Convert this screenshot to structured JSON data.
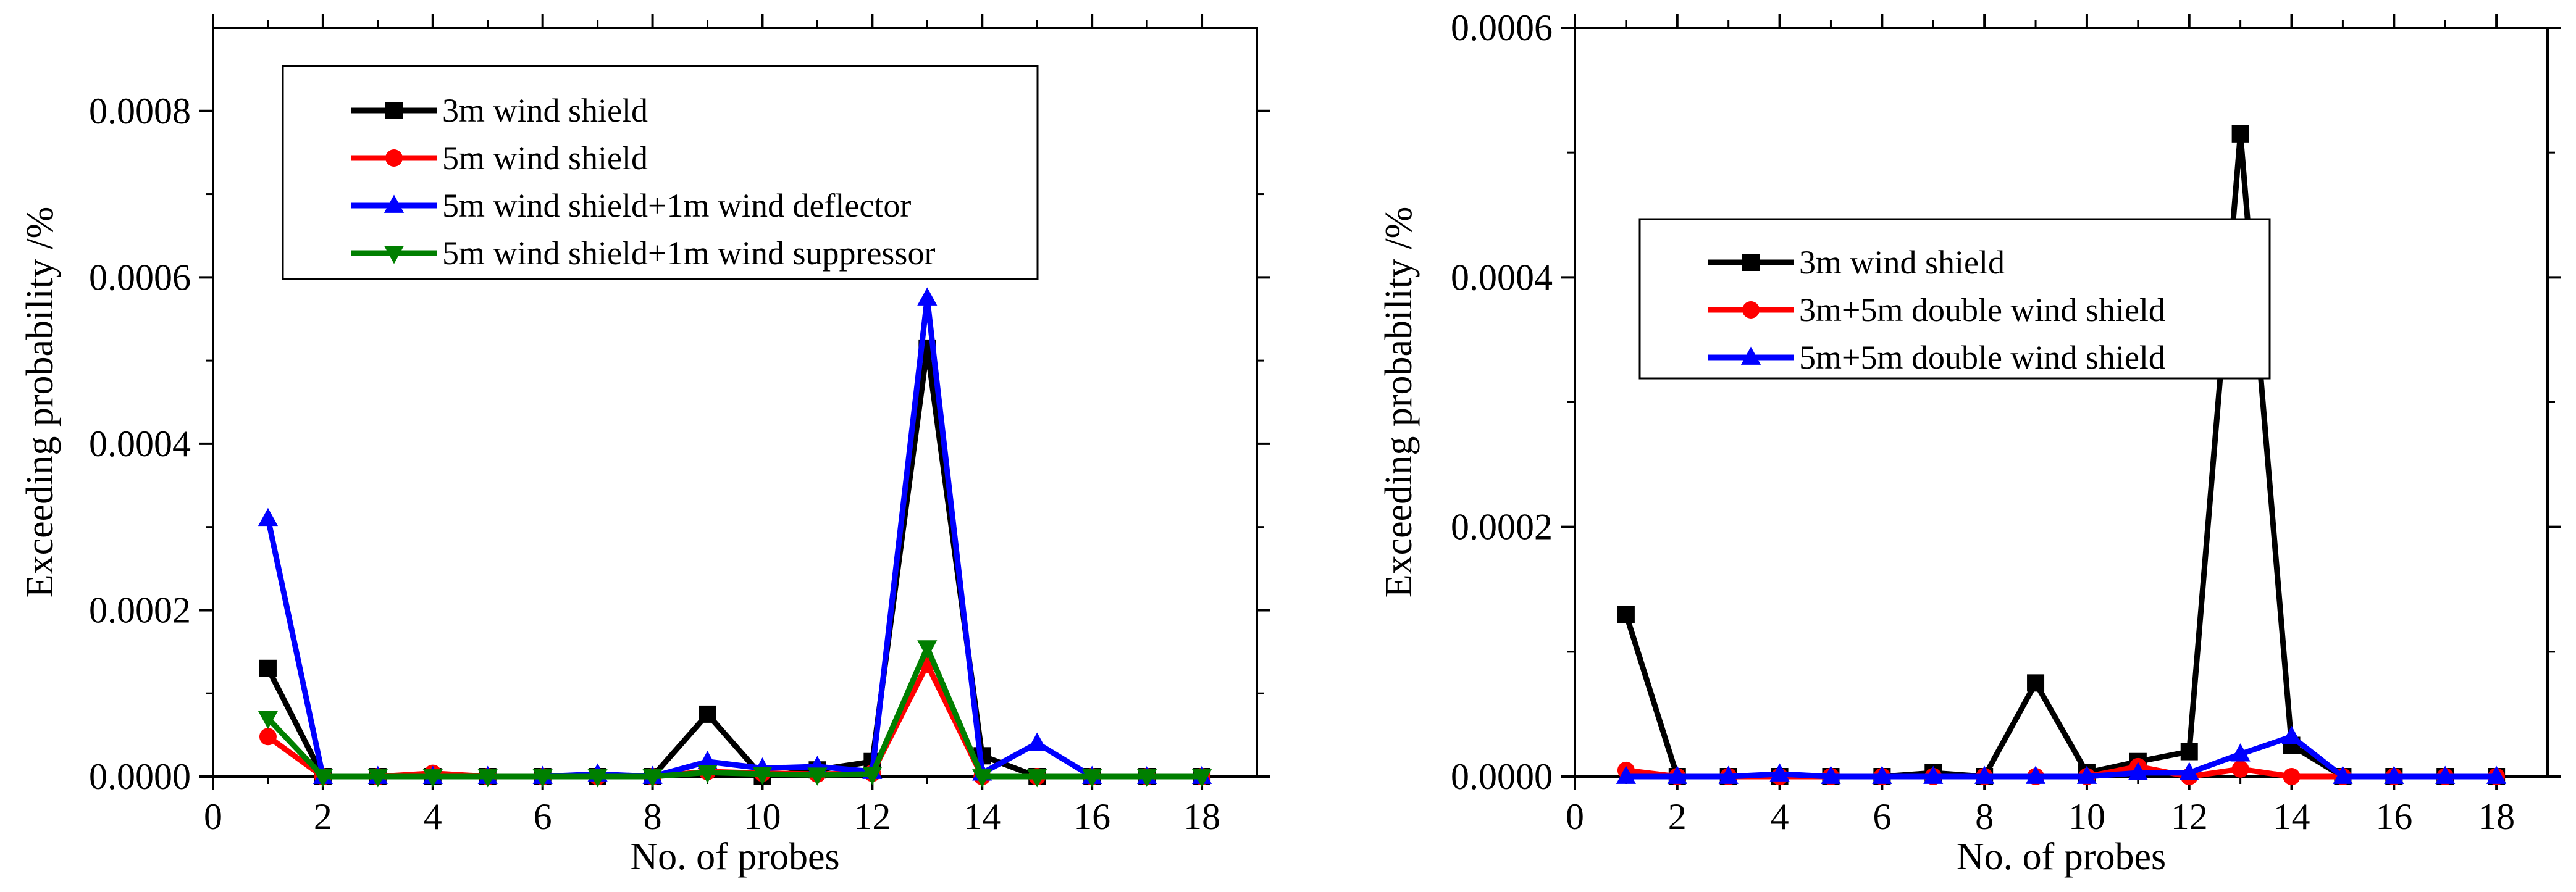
{
  "chart_data": [
    {
      "type": "line",
      "xlabel": "No. of probes",
      "ylabel": "Exceeding probability /%",
      "xlim": [
        0,
        19
      ],
      "ylim": [
        0,
        0.0009
      ],
      "xticks": [
        "0",
        "2",
        "4",
        "6",
        "8",
        "10",
        "12",
        "14",
        "16",
        "18"
      ],
      "yticks": [
        "0.0000",
        "0.0002",
        "0.0004",
        "0.0006",
        "0.0008"
      ],
      "legend_position": "top-left",
      "x": [
        1,
        2,
        3,
        4,
        5,
        6,
        7,
        8,
        9,
        10,
        11,
        12,
        13,
        14,
        15,
        16,
        17,
        18
      ],
      "series": [
        {
          "name": "3m wind shield",
          "color": "#000000",
          "marker": "square",
          "values": [
            0.00013,
            0.0,
            0.0,
            0.0,
            0.0,
            0.0,
            0.0,
            0.0,
            7.5e-05,
            0.0,
            8e-06,
            1.8e-05,
            0.000515,
            2.5e-05,
            0.0,
            0.0,
            0.0,
            0.0
          ]
        },
        {
          "name": "5m wind shield",
          "color": "#ff0000",
          "marker": "circle",
          "values": [
            4.8e-05,
            0.0,
            0.0,
            4e-06,
            0.0,
            0.0,
            0.0,
            0.0,
            6e-06,
            4e-06,
            3e-06,
            4e-06,
            0.000135,
            0.0,
            0.0,
            0.0,
            0.0,
            0.0
          ]
        },
        {
          "name": "5m wind shield+1m wind deflector",
          "color": "#0000ff",
          "marker": "triangle-up",
          "values": [
            0.00031,
            0.0,
            0.0,
            0.0,
            0.0,
            0.0,
            3e-06,
            0.0,
            1.8e-05,
            1e-05,
            1.2e-05,
            6e-06,
            0.000575,
            4e-06,
            4e-05,
            0.0,
            0.0,
            0.0
          ]
        },
        {
          "name": "5m wind shield+1m wind suppressor",
          "color": "#007f00",
          "marker": "triangle-down",
          "values": [
            7e-05,
            0.0,
            0.0,
            0.0,
            0.0,
            0.0,
            0.0,
            0.0,
            5e-06,
            3e-06,
            2e-06,
            3e-06,
            0.000155,
            0.0,
            0.0,
            0.0,
            0.0,
            0.0
          ]
        }
      ]
    },
    {
      "type": "line",
      "xlabel": "No. of probes",
      "ylabel": "Exceeding probability /%",
      "xlim": [
        0,
        19
      ],
      "ylim": [
        0,
        0.0006
      ],
      "xticks": [
        "0",
        "2",
        "4",
        "6",
        "8",
        "10",
        "12",
        "14",
        "16",
        "18"
      ],
      "yticks": [
        "0.0000",
        "0.0002",
        "0.0004",
        "0.0006"
      ],
      "legend_position": "middle-left",
      "x": [
        1,
        2,
        3,
        4,
        5,
        6,
        7,
        8,
        9,
        10,
        11,
        12,
        13,
        14,
        15,
        16,
        17,
        18
      ],
      "series": [
        {
          "name": "3m wind shield",
          "color": "#000000",
          "marker": "square",
          "values": [
            0.00013,
            0.0,
            0.0,
            0.0,
            0.0,
            0.0,
            3e-06,
            0.0,
            7.5e-05,
            3e-06,
            1.2e-05,
            2e-05,
            0.000515,
            2.5e-05,
            0.0,
            0.0,
            0.0,
            0.0
          ]
        },
        {
          "name": "3m+5m double wind shield",
          "color": "#ff0000",
          "marker": "circle",
          "values": [
            5e-06,
            0.0,
            0.0,
            0.0,
            0.0,
            0.0,
            0.0,
            0.0,
            0.0,
            0.0,
            8e-06,
            0.0,
            6e-06,
            0.0,
            0.0,
            0.0,
            0.0,
            0.0
          ]
        },
        {
          "name": "5m+5m double wind shield",
          "color": "#0000ff",
          "marker": "triangle-up",
          "values": [
            0.0,
            0.0,
            0.0,
            2e-06,
            0.0,
            0.0,
            0.0,
            0.0,
            0.0,
            0.0,
            3e-06,
            3e-06,
            1.8e-05,
            3.2e-05,
            0.0,
            0.0,
            0.0,
            0.0
          ]
        }
      ]
    }
  ]
}
